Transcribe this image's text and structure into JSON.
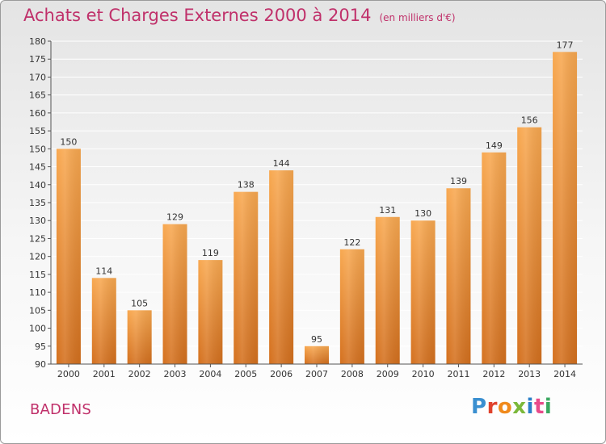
{
  "header": {
    "title": "Achats et Charges Externes 2000 à 2014",
    "unit": "(en milliers d'€)"
  },
  "footer": {
    "place": "BADENS",
    "logo": "Proxiti"
  },
  "colors": {
    "title": "#c0306a",
    "bar_light": "#f6a34e",
    "bar_dark": "#d8731f",
    "grid": "#ffffff",
    "axis": "#555555"
  },
  "chart_data": {
    "type": "bar",
    "categories": [
      "2000",
      "2001",
      "2002",
      "2003",
      "2004",
      "2005",
      "2006",
      "2007",
      "2008",
      "2009",
      "2010",
      "2011",
      "2012",
      "2013",
      "2014"
    ],
    "values": [
      150,
      114,
      105,
      129,
      119,
      138,
      144,
      95,
      122,
      131,
      130,
      139,
      149,
      156,
      177
    ],
    "title": "Achats et Charges Externes 2000 à 2014",
    "ylim": [
      90,
      180
    ],
    "ytick_step": 5,
    "grid": true,
    "data_labels": true
  }
}
